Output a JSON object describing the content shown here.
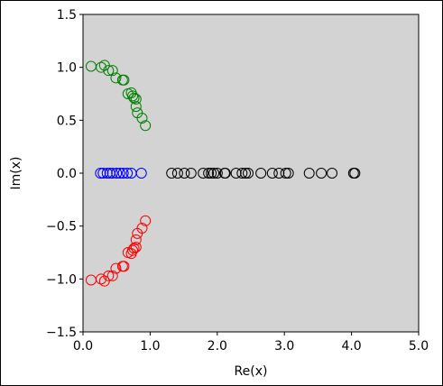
{
  "chart_data": {
    "type": "scatter",
    "xlabel": "Re(x)",
    "ylabel": "Im(x)",
    "xlim": [
      0,
      5
    ],
    "ylim": [
      -1.5,
      1.5
    ],
    "xticks": [
      {
        "value": 0,
        "label": "0.0"
      },
      {
        "value": 1,
        "label": "1.0"
      },
      {
        "value": 2,
        "label": "2.0"
      },
      {
        "value": 3,
        "label": "3.0"
      },
      {
        "value": 4,
        "label": "4.0"
      },
      {
        "value": 5,
        "label": "5.0"
      }
    ],
    "yticks": [
      {
        "value": -1.5,
        "label": "−1.5"
      },
      {
        "value": -1,
        "label": "−1.0"
      },
      {
        "value": -0.5,
        "label": "−0.5"
      },
      {
        "value": 0,
        "label": "0.0"
      },
      {
        "value": 0.5,
        "label": "0.5"
      },
      {
        "value": 1,
        "label": "1.0"
      },
      {
        "value": 1.5,
        "label": "1.5"
      }
    ],
    "background": "#d3d3d3",
    "series": [
      {
        "color": "green",
        "x": [
          0.12,
          0.27,
          0.32,
          0.38,
          0.44,
          0.49,
          0.59,
          0.61,
          0.67,
          0.72,
          0.74,
          0.76,
          0.79,
          0.79,
          0.81,
          0.88,
          0.93
        ],
        "y": [
          1.01,
          1.0,
          1.02,
          0.97,
          0.97,
          0.9,
          0.88,
          0.88,
          0.75,
          0.76,
          0.73,
          0.71,
          0.7,
          0.63,
          0.57,
          0.52,
          0.45
        ]
      },
      {
        "color": "red",
        "x": [
          0.12,
          0.27,
          0.32,
          0.38,
          0.44,
          0.49,
          0.59,
          0.61,
          0.67,
          0.72,
          0.74,
          0.76,
          0.79,
          0.79,
          0.81,
          0.88,
          0.93
        ],
        "y": [
          -1.01,
          -1.0,
          -1.02,
          -0.97,
          -0.97,
          -0.9,
          -0.88,
          -0.88,
          -0.75,
          -0.76,
          -0.73,
          -0.71,
          -0.7,
          -0.63,
          -0.57,
          -0.52,
          -0.45
        ]
      },
      {
        "color": "blue",
        "x": [
          0.26,
          0.3,
          0.36,
          0.4,
          0.44,
          0.5,
          0.55,
          0.6,
          0.66,
          0.72,
          0.87
        ],
        "y": [
          0,
          0,
          0,
          0,
          0,
          0,
          0,
          0,
          0,
          0,
          0
        ]
      },
      {
        "color": "black",
        "x": [
          1.32,
          1.41,
          1.51,
          1.61,
          1.79,
          1.87,
          1.91,
          1.95,
          2.0,
          2.11,
          2.12,
          2.28,
          2.37,
          2.42,
          2.46,
          2.65,
          2.82,
          2.92,
          3.02,
          3.06,
          3.37,
          3.55,
          3.71,
          4.03,
          4.05
        ],
        "y": [
          0,
          0,
          0,
          0,
          0,
          0,
          0,
          0,
          0,
          0,
          0,
          0,
          0,
          0,
          0,
          0,
          0,
          0,
          0,
          0,
          0,
          0,
          0,
          0,
          0
        ]
      }
    ]
  }
}
